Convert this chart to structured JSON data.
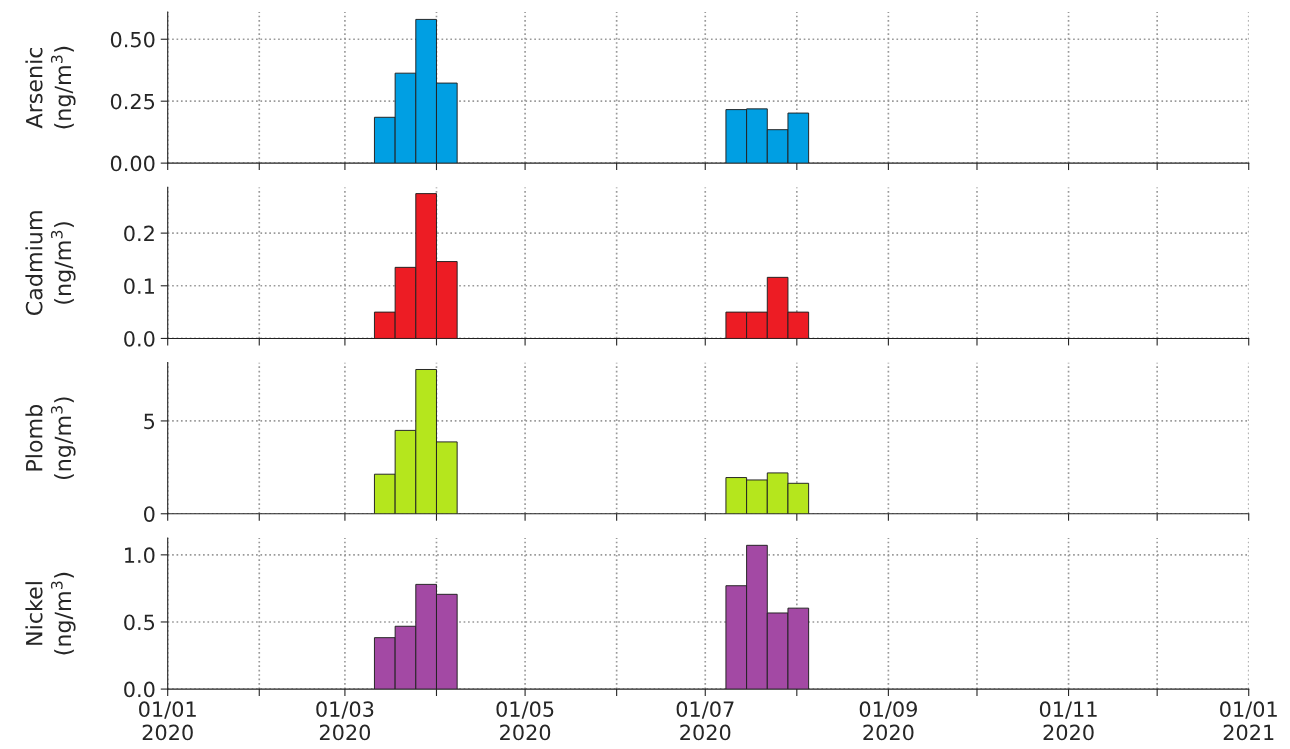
{
  "chart_data": [
    {
      "type": "bar",
      "ylabel": "Arsenic\n(ng/m$^{3}$)",
      "x": [
        "2020-03-14T12:00",
        "2020-03-21T12:00",
        "2020-03-28T12:00",
        "2020-04-04T12:00",
        "2020-07-11T12:00",
        "2020-07-18T12:00",
        "2020-07-25T12:00",
        "2020-08-01T12:00"
      ],
      "series": [
        {
          "color": "#009fe3",
          "values": [
            0.185,
            0.363,
            0.58,
            0.323,
            0.216,
            0.219,
            0.135,
            0.202
          ]
        }
      ],
      "xlim": [
        "2020-01-01",
        "2021-01-01"
      ],
      "xticks": [
        {
          "value": "2020-01-01",
          "label": null
        },
        {
          "value": "2020-02-01",
          "label": null
        },
        {
          "value": "2020-03-01",
          "label": null
        },
        {
          "value": "2020-04-01",
          "label": null
        },
        {
          "value": "2020-05-01",
          "label": null
        },
        {
          "value": "2020-06-01",
          "label": null
        },
        {
          "value": "2020-07-01",
          "label": null
        },
        {
          "value": "2020-08-01",
          "label": null
        },
        {
          "value": "2020-09-01",
          "label": null
        },
        {
          "value": "2020-10-01",
          "label": null
        },
        {
          "value": "2020-11-01",
          "label": null
        },
        {
          "value": "2020-12-01",
          "label": null
        },
        {
          "value": "2021-01-01",
          "label": null
        }
      ],
      "ylim": [
        0,
        0.61
      ],
      "yticks": [
        {
          "value": 0,
          "label": "0.00"
        },
        {
          "value": 0.25,
          "label": "0.25"
        },
        {
          "value": 0.5,
          "label": "0.50"
        }
      ],
      "grid": true,
      "tick_labels": "y"
    },
    {
      "type": "bar",
      "ylabel": "Cadmium\n(ng/m$^{3}$)",
      "x": [
        "2020-03-14T12:00",
        "2020-03-21T12:00",
        "2020-03-28T12:00",
        "2020-04-04T12:00",
        "2020-07-11T12:00",
        "2020-07-18T12:00",
        "2020-07-25T12:00",
        "2020-08-01T12:00"
      ],
      "series": [
        {
          "color": "#ed1c24",
          "values": [
            0.05,
            0.135,
            0.275,
            0.146,
            0.05,
            0.05,
            0.116,
            0.05
          ]
        }
      ],
      "xlim": [
        "2020-01-01",
        "2021-01-01"
      ],
      "xticks": [
        {
          "value": "2020-01-01",
          "label": null
        },
        {
          "value": "2020-02-01",
          "label": null
        },
        {
          "value": "2020-03-01",
          "label": null
        },
        {
          "value": "2020-04-01",
          "label": null
        },
        {
          "value": "2020-05-01",
          "label": null
        },
        {
          "value": "2020-06-01",
          "label": null
        },
        {
          "value": "2020-07-01",
          "label": null
        },
        {
          "value": "2020-08-01",
          "label": null
        },
        {
          "value": "2020-09-01",
          "label": null
        },
        {
          "value": "2020-10-01",
          "label": null
        },
        {
          "value": "2020-11-01",
          "label": null
        },
        {
          "value": "2020-12-01",
          "label": null
        },
        {
          "value": "2021-01-01",
          "label": null
        }
      ],
      "ylim": [
        0,
        0.287
      ],
      "yticks": [
        {
          "value": 0,
          "label": "0.0"
        },
        {
          "value": 0.1,
          "label": "0.1"
        },
        {
          "value": 0.2,
          "label": "0.2"
        }
      ],
      "grid": true,
      "tick_labels": "y"
    },
    {
      "type": "bar",
      "ylabel": "Plomb\n(ng/m$^{3}$)",
      "x": [
        "2020-03-14T12:00",
        "2020-03-21T12:00",
        "2020-03-28T12:00",
        "2020-04-04T12:00",
        "2020-07-11T12:00",
        "2020-07-18T12:00",
        "2020-07-25T12:00",
        "2020-08-01T12:00"
      ],
      "series": [
        {
          "color": "#b5e61d",
          "values": [
            2.13,
            4.49,
            7.77,
            3.87,
            1.95,
            1.82,
            2.2,
            1.64
          ]
        }
      ],
      "xlim": [
        "2020-01-01",
        "2021-01-01"
      ],
      "xticks": [
        {
          "value": "2020-01-01",
          "label": null
        },
        {
          "value": "2020-02-01",
          "label": null
        },
        {
          "value": "2020-03-01",
          "label": null
        },
        {
          "value": "2020-04-01",
          "label": null
        },
        {
          "value": "2020-05-01",
          "label": null
        },
        {
          "value": "2020-06-01",
          "label": null
        },
        {
          "value": "2020-07-01",
          "label": null
        },
        {
          "value": "2020-08-01",
          "label": null
        },
        {
          "value": "2020-09-01",
          "label": null
        },
        {
          "value": "2020-10-01",
          "label": null
        },
        {
          "value": "2020-11-01",
          "label": null
        },
        {
          "value": "2020-12-01",
          "label": null
        },
        {
          "value": "2021-01-01",
          "label": null
        }
      ],
      "ylim": [
        0,
        8.14
      ],
      "yticks": [
        0,
        5
      ],
      "grid": true,
      "tick_labels": "y"
    },
    {
      "type": "bar",
      "ylabel": "Nickel\n(ng/m$^{3}$)",
      "x": [
        "2020-03-14T12:00",
        "2020-03-21T12:00",
        "2020-03-28T12:00",
        "2020-04-04T12:00",
        "2020-07-11T12:00",
        "2020-07-18T12:00",
        "2020-07-25T12:00",
        "2020-08-01T12:00"
      ],
      "series": [
        {
          "color": "#a349a4",
          "values": [
            0.383,
            0.468,
            0.78,
            0.706,
            0.77,
            1.071,
            0.567,
            0.603
          ]
        }
      ],
      "xlim": [
        "2020-01-01",
        "2021-01-01"
      ],
      "xticks": [
        {
          "value": "2020-01-01",
          "label": "01/01\n2020"
        },
        {
          "value": "2020-02-01",
          "label": null
        },
        {
          "value": "2020-03-01",
          "label": "01/03\n2020"
        },
        {
          "value": "2020-04-01",
          "label": null
        },
        {
          "value": "2020-05-01",
          "label": "01/05\n2020"
        },
        {
          "value": "2020-06-01",
          "label": null
        },
        {
          "value": "2020-07-01",
          "label": "01/07\n2020"
        },
        {
          "value": "2020-08-01",
          "label": null
        },
        {
          "value": "2020-09-01",
          "label": "01/09\n2020"
        },
        {
          "value": "2020-10-01",
          "label": null
        },
        {
          "value": "2020-11-01",
          "label": "01/11\n2020"
        },
        {
          "value": "2020-12-01",
          "label": null
        },
        {
          "value": "2021-01-01",
          "label": "01/01\n2021"
        }
      ],
      "ylim": [
        0,
        1.126
      ],
      "yticks": [
        {
          "value": 0,
          "label": "0.0"
        },
        {
          "value": 0.5,
          "label": "0.5"
        },
        {
          "value": 1.0,
          "label": "1.0"
        }
      ],
      "grid": true
    }
  ]
}
